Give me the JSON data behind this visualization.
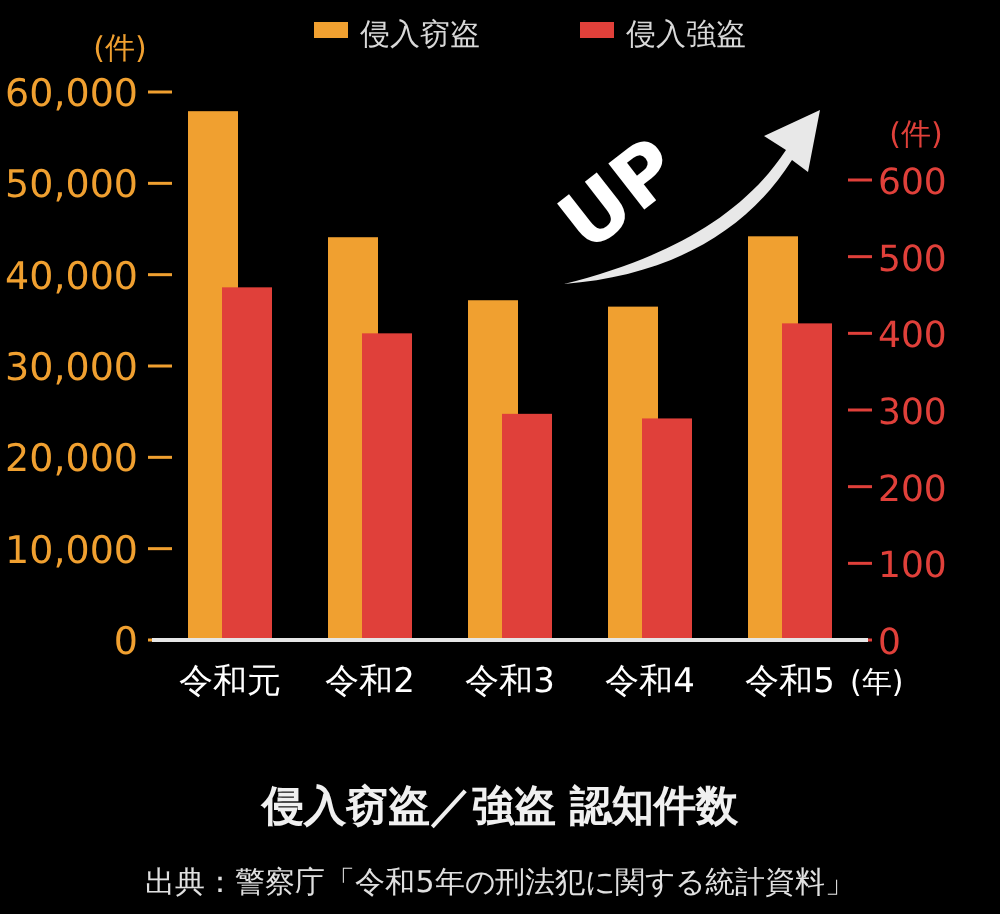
{
  "chart_data": {
    "type": "bar",
    "title": "侵入窃盗／強盗 認知件数",
    "categories": [
      "令和元",
      "令和2",
      "令和3",
      "令和4",
      "令和5"
    ],
    "xlabel": "(年)",
    "ylabel": "(件)",
    "y2label": "(件)",
    "series": [
      {
        "name": "侵入窃盗",
        "color": "#f0a030",
        "values": [
          57900,
          44100,
          37200,
          36500,
          44200
        ]
      },
      {
        "name": "侵入強盗",
        "color": "#e0403a",
        "values": [
          460,
          400,
          295,
          289,
          413
        ],
        "axis": "y2"
      }
    ],
    "ylim": [
      0,
      60000
    ],
    "yticks": [
      0,
      {
        "value": 10000,
        "label": "10,000"
      },
      {
        "value": 20000,
        "label": "20,000"
      },
      {
        "value": 30000,
        "label": "30,000"
      },
      {
        "value": 40000,
        "label": "40,000"
      },
      {
        "value": 50000,
        "label": "50,000"
      },
      {
        "value": 60000,
        "label": "60,000"
      }
    ],
    "y2lim": [
      0,
      600
    ],
    "y2ticks": [
      0,
      100,
      200,
      300,
      400,
      500,
      600
    ],
    "legend": "top",
    "annotations": [
      "UP",
      "出典：警察庁「令和5年の刑法犯に関する統計資料」"
    ]
  }
}
